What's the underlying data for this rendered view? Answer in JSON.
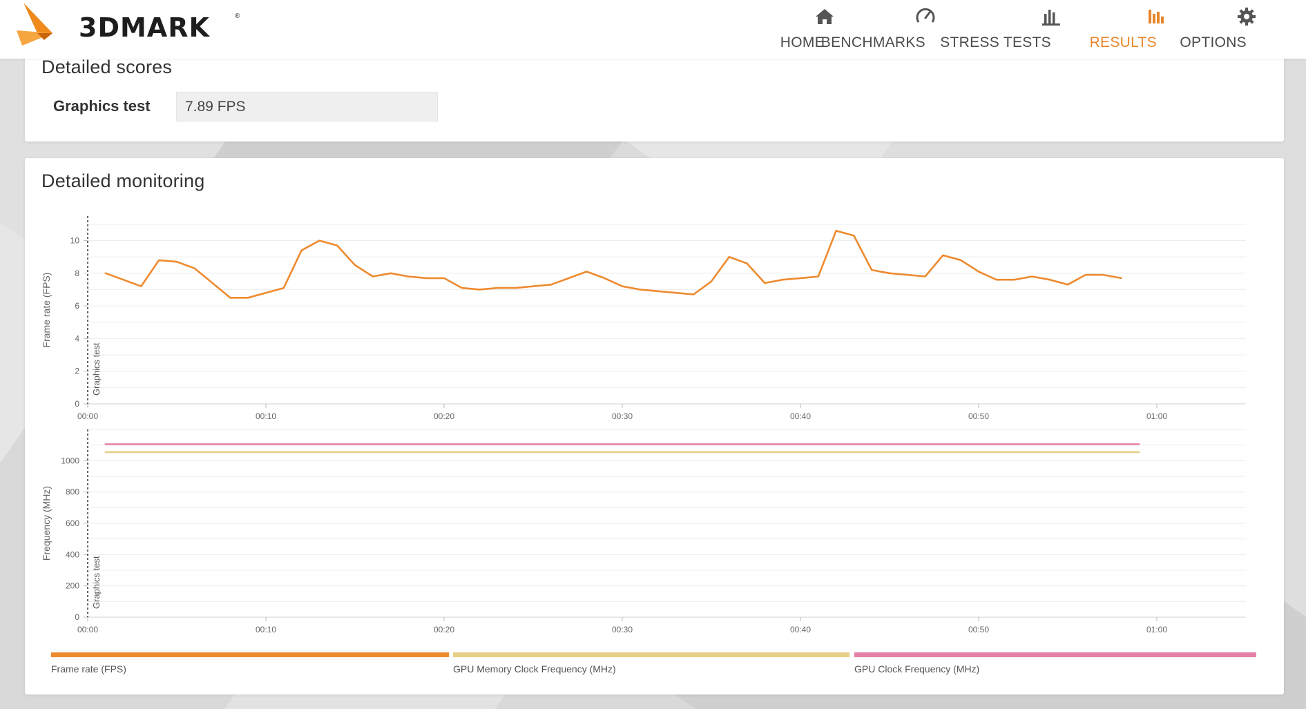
{
  "header": {
    "logo_text": "3DMARK",
    "logo_reg": "®",
    "nav": [
      {
        "label": "HOME",
        "icon": "home-icon",
        "active": false
      },
      {
        "label": "BENCHMARKS",
        "icon": "gauge-icon",
        "active": false
      },
      {
        "label": "STRESS TESTS",
        "icon": "bar-chart-icon",
        "active": false
      },
      {
        "label": "RESULTS",
        "icon": "results-icon",
        "active": true
      },
      {
        "label": "OPTIONS",
        "icon": "gear-icon",
        "active": false
      }
    ],
    "accent_color": "#e8862a"
  },
  "detailed_scores": {
    "title": "Detailed scores",
    "rows": [
      {
        "label": "Graphics test",
        "value": "7.89 FPS"
      }
    ]
  },
  "detailed_monitoring": {
    "title": "Detailed monitoring",
    "legend": [
      {
        "label": "Frame rate (FPS)",
        "color": "#ee8a2e"
      },
      {
        "label": "GPU Memory Clock Frequency (MHz)",
        "color": "#e6cf86"
      },
      {
        "label": "GPU Clock Frequency (MHz)",
        "color": "#e67fa6"
      }
    ]
  },
  "chart_data": [
    {
      "type": "line",
      "ylabel": "Frame rate (FPS)",
      "xlabel": "",
      "ylim": [
        0,
        11.5
      ],
      "yticks": [
        0,
        2,
        4,
        6,
        8,
        10
      ],
      "xlim": [
        0,
        65
      ],
      "xticks": [
        "00:00",
        "00:10",
        "00:20",
        "00:30",
        "00:40",
        "00:50",
        "01:00"
      ],
      "xtick_values": [
        0,
        10,
        20,
        30,
        40,
        50,
        60
      ],
      "marker_label": "Graphics test",
      "marker_x": 0,
      "grid": true,
      "series": [
        {
          "name": "Frame rate (FPS)",
          "color": "#ee8a2e",
          "x": [
            1,
            2,
            3,
            4,
            5,
            6,
            7,
            8,
            9,
            10,
            11,
            12,
            13,
            14,
            15,
            16,
            17,
            18,
            19,
            20,
            21,
            22,
            23,
            24,
            25,
            26,
            27,
            28,
            29,
            30,
            31,
            32,
            33,
            34,
            35,
            36,
            37,
            38,
            39,
            40,
            41,
            42,
            43,
            44,
            45,
            46,
            47,
            48,
            49,
            50,
            51,
            52,
            53,
            54,
            55,
            56,
            57,
            58
          ],
          "y": [
            8.0,
            7.6,
            7.2,
            8.8,
            8.7,
            8.3,
            7.4,
            6.5,
            6.5,
            6.8,
            7.1,
            9.4,
            10.0,
            9.7,
            8.5,
            7.8,
            8.0,
            7.8,
            7.7,
            7.7,
            7.1,
            7.0,
            7.1,
            7.1,
            7.2,
            7.3,
            7.7,
            8.1,
            7.7,
            7.2,
            7.0,
            6.9,
            6.8,
            6.7,
            7.5,
            9.0,
            8.6,
            7.4,
            7.6,
            7.7,
            7.8,
            10.6,
            10.3,
            8.2,
            8.0,
            7.9,
            7.8,
            9.1,
            8.8,
            8.1,
            7.6,
            7.6,
            7.8,
            7.6,
            7.3,
            7.9,
            7.9,
            7.7
          ]
        }
      ]
    },
    {
      "type": "line",
      "ylabel": "Frequency (MHz)",
      "xlabel": "",
      "ylim": [
        0,
        1200
      ],
      "yticks": [
        0,
        200,
        400,
        600,
        800,
        1000
      ],
      "xlim": [
        0,
        65
      ],
      "xticks": [
        "00:00",
        "00:10",
        "00:20",
        "00:30",
        "00:40",
        "00:50",
        "01:00"
      ],
      "xtick_values": [
        0,
        10,
        20,
        30,
        40,
        50,
        60
      ],
      "marker_label": "Graphics test",
      "marker_x": 0,
      "grid": true,
      "series": [
        {
          "name": "GPU Clock Frequency (MHz)",
          "color": "#e67fa6",
          "x": [
            1,
            59
          ],
          "y": [
            1105,
            1105
          ]
        },
        {
          "name": "GPU Memory Clock Frequency (MHz)",
          "color": "#e6cf86",
          "x": [
            1,
            59
          ],
          "y": [
            1055,
            1055
          ]
        }
      ]
    }
  ]
}
